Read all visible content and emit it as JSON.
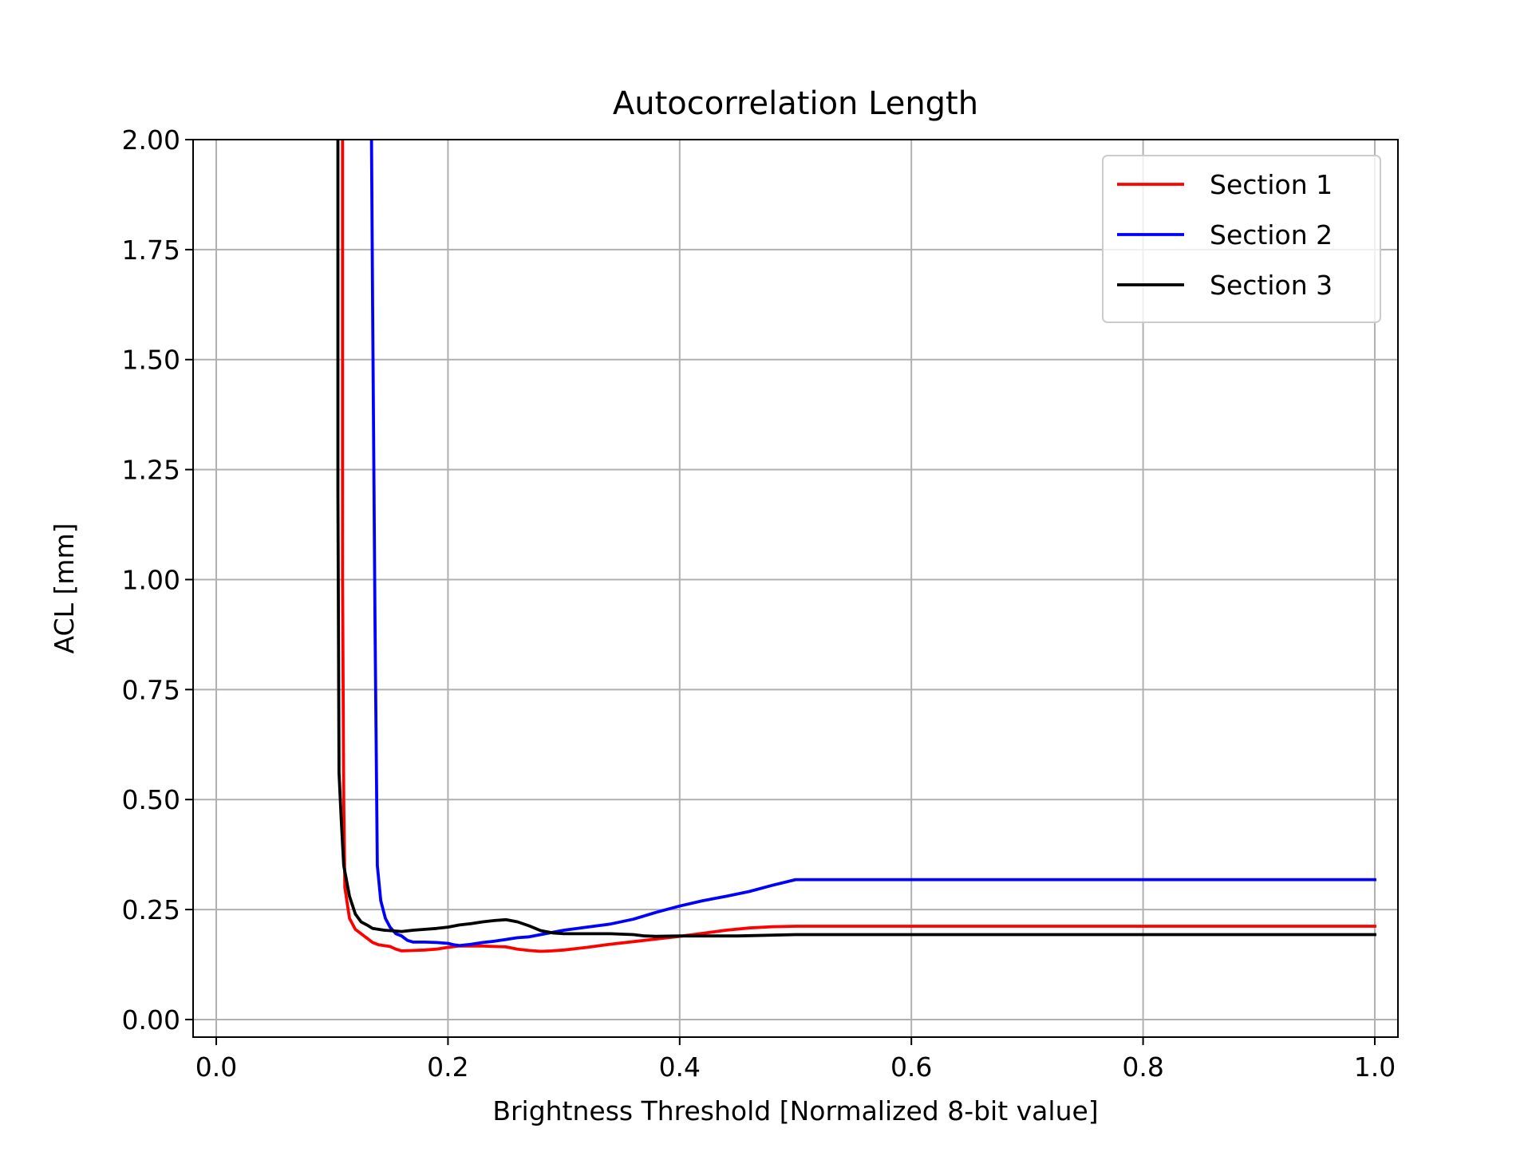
{
  "chart_data": {
    "type": "line",
    "title": "Autocorrelation Length",
    "xlabel": "Brightness Threshold [Normalized 8-bit value]",
    "ylabel": "ACL [mm]",
    "xlim": [
      -0.02,
      1.02
    ],
    "ylim": [
      -0.04,
      2.0
    ],
    "xticks": [
      0.0,
      0.2,
      0.4,
      0.6,
      0.8,
      1.0
    ],
    "xtick_labels": [
      "0.0",
      "0.2",
      "0.4",
      "0.6",
      "0.8",
      "1.0"
    ],
    "yticks": [
      0.0,
      0.25,
      0.5,
      0.75,
      1.0,
      1.25,
      1.5,
      1.75,
      2.0
    ],
    "ytick_labels": [
      "0.00",
      "0.25",
      "0.50",
      "0.75",
      "1.00",
      "1.25",
      "1.50",
      "1.75",
      "2.00"
    ],
    "grid": true,
    "legend_position": "top-right",
    "series": [
      {
        "name": "Section 1",
        "color": "#ff0000",
        "points": [
          [
            0.109,
            2.0
          ],
          [
            0.109,
            1.0
          ],
          [
            0.11,
            0.5
          ],
          [
            0.111,
            0.3
          ],
          [
            0.115,
            0.23
          ],
          [
            0.12,
            0.205
          ],
          [
            0.13,
            0.185
          ],
          [
            0.135,
            0.175
          ],
          [
            0.14,
            0.17
          ],
          [
            0.15,
            0.166
          ],
          [
            0.155,
            0.16
          ],
          [
            0.16,
            0.156
          ],
          [
            0.17,
            0.157
          ],
          [
            0.18,
            0.158
          ],
          [
            0.19,
            0.16
          ],
          [
            0.2,
            0.164
          ],
          [
            0.21,
            0.167
          ],
          [
            0.22,
            0.167
          ],
          [
            0.23,
            0.167
          ],
          [
            0.24,
            0.166
          ],
          [
            0.25,
            0.165
          ],
          [
            0.26,
            0.16
          ],
          [
            0.27,
            0.157
          ],
          [
            0.28,
            0.155
          ],
          [
            0.29,
            0.156
          ],
          [
            0.3,
            0.158
          ],
          [
            0.32,
            0.164
          ],
          [
            0.34,
            0.171
          ],
          [
            0.36,
            0.177
          ],
          [
            0.38,
            0.183
          ],
          [
            0.4,
            0.189
          ],
          [
            0.42,
            0.196
          ],
          [
            0.44,
            0.203
          ],
          [
            0.46,
            0.208
          ],
          [
            0.48,
            0.211
          ],
          [
            0.5,
            0.212
          ],
          [
            0.6,
            0.212
          ],
          [
            0.7,
            0.212
          ],
          [
            0.8,
            0.212
          ],
          [
            0.9,
            0.212
          ],
          [
            1.0,
            0.212
          ]
        ]
      },
      {
        "name": "Section 2",
        "color": "#0000ff",
        "points": [
          [
            0.134,
            2.0
          ],
          [
            0.135,
            1.62
          ],
          [
            0.137,
            0.9
          ],
          [
            0.139,
            0.35
          ],
          [
            0.142,
            0.27
          ],
          [
            0.146,
            0.23
          ],
          [
            0.15,
            0.21
          ],
          [
            0.155,
            0.195
          ],
          [
            0.16,
            0.19
          ],
          [
            0.165,
            0.18
          ],
          [
            0.17,
            0.176
          ],
          [
            0.18,
            0.176
          ],
          [
            0.19,
            0.175
          ],
          [
            0.2,
            0.173
          ],
          [
            0.205,
            0.17
          ],
          [
            0.21,
            0.168
          ],
          [
            0.22,
            0.171
          ],
          [
            0.23,
            0.175
          ],
          [
            0.24,
            0.178
          ],
          [
            0.25,
            0.182
          ],
          [
            0.26,
            0.186
          ],
          [
            0.27,
            0.188
          ],
          [
            0.28,
            0.193
          ],
          [
            0.29,
            0.198
          ],
          [
            0.3,
            0.203
          ],
          [
            0.32,
            0.21
          ],
          [
            0.34,
            0.217
          ],
          [
            0.36,
            0.228
          ],
          [
            0.38,
            0.244
          ],
          [
            0.4,
            0.258
          ],
          [
            0.42,
            0.27
          ],
          [
            0.44,
            0.28
          ],
          [
            0.46,
            0.291
          ],
          [
            0.48,
            0.305
          ],
          [
            0.5,
            0.318
          ],
          [
            0.6,
            0.318
          ],
          [
            0.7,
            0.318
          ],
          [
            0.8,
            0.318
          ],
          [
            0.9,
            0.318
          ],
          [
            1.0,
            0.318
          ]
        ]
      },
      {
        "name": "Section 3",
        "color": "#000000",
        "points": [
          [
            0.105,
            2.0
          ],
          [
            0.105,
            1.2
          ],
          [
            0.106,
            0.56
          ],
          [
            0.108,
            0.45
          ],
          [
            0.11,
            0.35
          ],
          [
            0.115,
            0.28
          ],
          [
            0.12,
            0.24
          ],
          [
            0.125,
            0.222
          ],
          [
            0.13,
            0.215
          ],
          [
            0.135,
            0.207
          ],
          [
            0.14,
            0.205
          ],
          [
            0.145,
            0.203
          ],
          [
            0.15,
            0.202
          ],
          [
            0.16,
            0.2
          ],
          [
            0.17,
            0.203
          ],
          [
            0.18,
            0.205
          ],
          [
            0.19,
            0.207
          ],
          [
            0.2,
            0.21
          ],
          [
            0.21,
            0.215
          ],
          [
            0.22,
            0.218
          ],
          [
            0.23,
            0.222
          ],
          [
            0.24,
            0.225
          ],
          [
            0.25,
            0.227
          ],
          [
            0.26,
            0.222
          ],
          [
            0.27,
            0.213
          ],
          [
            0.28,
            0.202
          ],
          [
            0.29,
            0.197
          ],
          [
            0.3,
            0.195
          ],
          [
            0.32,
            0.195
          ],
          [
            0.34,
            0.195
          ],
          [
            0.36,
            0.193
          ],
          [
            0.37,
            0.19
          ],
          [
            0.38,
            0.189
          ],
          [
            0.4,
            0.19
          ],
          [
            0.45,
            0.19
          ],
          [
            0.5,
            0.193
          ],
          [
            0.6,
            0.193
          ],
          [
            0.7,
            0.193
          ],
          [
            0.8,
            0.193
          ],
          [
            0.9,
            0.193
          ],
          [
            1.0,
            0.193
          ]
        ]
      }
    ]
  }
}
